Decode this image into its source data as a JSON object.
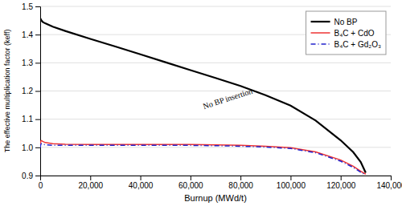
{
  "chart_data": {
    "type": "line",
    "xlabel": "Burnup (MWd/t)",
    "ylabel": "The effective multiplication factor (keff)",
    "x": [
      0,
      200,
      500,
      1000,
      2000,
      5000,
      10000,
      20000,
      30000,
      40000,
      50000,
      60000,
      70000,
      80000,
      90000,
      100000,
      110000,
      120000,
      125000,
      128000,
      130000
    ],
    "series": [
      {
        "name": "No BP",
        "color": "#000000",
        "line_style": "solid",
        "values": [
          1.458,
          1.455,
          1.45,
          1.445,
          1.44,
          1.428,
          1.413,
          1.385,
          1.358,
          1.33,
          1.302,
          1.274,
          1.246,
          1.218,
          1.185,
          1.148,
          1.095,
          1.025,
          0.983,
          0.948,
          0.91
        ]
      },
      {
        "name": "B₄C + CdO",
        "color": "#ee3333",
        "line_style": "solid",
        "values": [
          1.0,
          1.022,
          1.024,
          1.021,
          1.017,
          1.013,
          1.011,
          1.01,
          1.01,
          1.01,
          1.01,
          1.01,
          1.009,
          1.007,
          1.004,
          0.999,
          0.984,
          0.955,
          0.933,
          0.915,
          0.905
        ]
      },
      {
        "name": "B₄C + Gd₂O₃",
        "color": "#2222cc",
        "line_style": "dash-dot",
        "values": [
          0.998,
          1.01,
          1.013,
          1.011,
          1.009,
          1.007,
          1.007,
          1.007,
          1.007,
          1.007,
          1.007,
          1.007,
          1.006,
          1.004,
          1.001,
          0.996,
          0.981,
          0.951,
          0.929,
          0.912,
          0.902
        ]
      }
    ],
    "xlim": [
      0,
      140000
    ],
    "ylim": [
      0.9,
      1.5
    ],
    "xticks": [
      0,
      {
        "value": 20000,
        "label": "20,000"
      },
      {
        "value": 40000,
        "label": "40,000"
      },
      {
        "value": 60000,
        "label": "60,000"
      },
      {
        "value": 80000,
        "label": "80,000"
      },
      {
        "value": 100000,
        "label": "100,000"
      },
      {
        "value": 120000,
        "label": "120,000"
      },
      {
        "value": 140000,
        "label": "140,000"
      }
    ],
    "yticks": [
      0.9,
      {
        "value": 1,
        "label": "1.0"
      },
      1.1,
      1.2,
      1.3,
      1.4,
      1.5
    ],
    "annotations": [
      {
        "text": "No BP insertion",
        "x": 75000,
        "y": 1.17
      }
    ],
    "grid": true,
    "legend": "upper right"
  }
}
